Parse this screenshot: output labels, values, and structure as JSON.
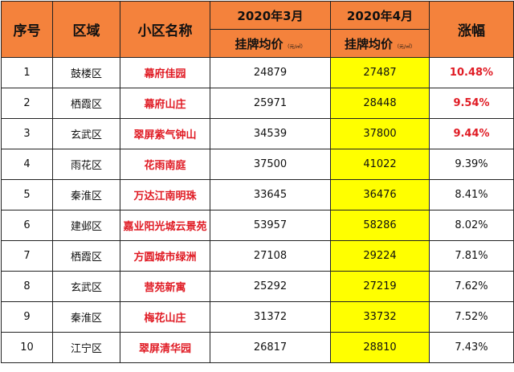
{
  "headers": {
    "index": "序号",
    "district": "区域",
    "community": "小区名称",
    "march": "2020年3月",
    "april": "2020年4月",
    "avg_price": "挂牌均价",
    "unit": "（元/㎡）",
    "growth": "涨幅"
  },
  "rows": [
    {
      "no": "1",
      "district": "鼓楼区",
      "name": "幕府佳园",
      "mar": "24879",
      "apr": "27487",
      "growth": "10.48%",
      "highlight": true
    },
    {
      "no": "2",
      "district": "栖霞区",
      "name": "幕府山庄",
      "mar": "25971",
      "apr": "28448",
      "growth": "9.54%",
      "highlight": true
    },
    {
      "no": "3",
      "district": "玄武区",
      "name": "翠屏紫气钟山",
      "mar": "34539",
      "apr": "37800",
      "growth": "9.44%",
      "highlight": true
    },
    {
      "no": "4",
      "district": "雨花区",
      "name": "花雨南庭",
      "mar": "37500",
      "apr": "41022",
      "growth": "9.39%",
      "highlight": false
    },
    {
      "no": "5",
      "district": "秦淮区",
      "name": "万达江南明珠",
      "mar": "33645",
      "apr": "36476",
      "growth": "8.41%",
      "highlight": false
    },
    {
      "no": "6",
      "district": "建邺区",
      "name": "嘉业阳光城云景苑",
      "mar": "53957",
      "apr": "58286",
      "growth": "8.02%",
      "highlight": false
    },
    {
      "no": "7",
      "district": "栖霞区",
      "name": "方圆城市绿洲",
      "mar": "27108",
      "apr": "29224",
      "growth": "7.81%",
      "highlight": false
    },
    {
      "no": "8",
      "district": "玄武区",
      "name": "营苑新寓",
      "mar": "25292",
      "apr": "27219",
      "growth": "7.62%",
      "highlight": false
    },
    {
      "no": "9",
      "district": "秦淮区",
      "name": "梅花山庄",
      "mar": "31372",
      "apr": "33732",
      "growth": "7.52%",
      "highlight": false
    },
    {
      "no": "10",
      "district": "江宁区",
      "name": "翠屏清华园",
      "mar": "26817",
      "apr": "28810",
      "growth": "7.43%",
      "highlight": false
    }
  ]
}
